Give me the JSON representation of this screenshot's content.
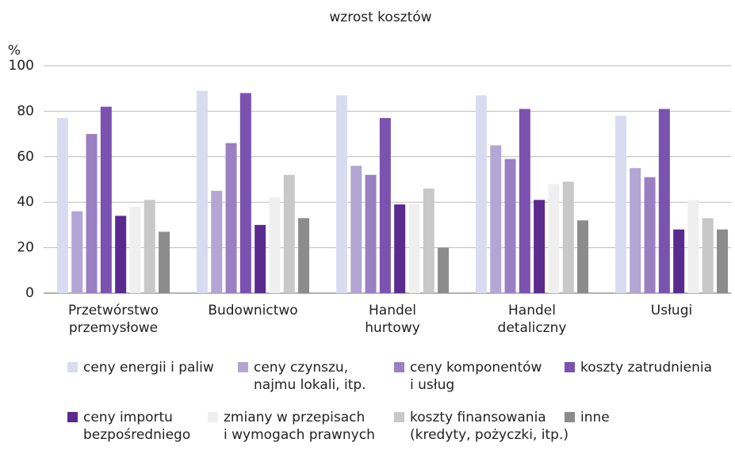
{
  "chart_data": {
    "type": "bar",
    "title": "wzrost kosztów",
    "y_label": "%",
    "categories": [
      "Przetwórstwo\nprzemysłowe",
      "Budownictwo",
      "Handel\nhurtowy",
      "Handel\ndetaliczny",
      "Usługi"
    ],
    "series": [
      {
        "name": "ceny energii i paliw",
        "color": "#d9dcf0",
        "values": [
          77,
          89,
          87,
          87,
          78
        ]
      },
      {
        "name": "ceny czynszu,\nnajmu lokali, itp.",
        "color": "#b3a6d4",
        "values": [
          36,
          45,
          56,
          65,
          55
        ]
      },
      {
        "name": "ceny komponentów\ni usług",
        "color": "#9a7fc3",
        "values": [
          70,
          66,
          52,
          59,
          51
        ]
      },
      {
        "name": "koszty zatrudnienia",
        "color": "#7b52b0",
        "values": [
          82,
          88,
          77,
          81,
          81
        ]
      },
      {
        "name": "ceny importu\nbezpośredniego",
        "color": "#5b2a8f",
        "values": [
          34,
          30,
          39,
          41,
          28
        ]
      },
      {
        "name": "zmiany w przepisach\ni wymogach prawnych",
        "color": "#efefef",
        "values": [
          38,
          42,
          39,
          48,
          41
        ]
      },
      {
        "name": "koszty finansowania\n(kredyty, pożyczki, itp.)",
        "color": "#c8c8c8",
        "values": [
          41,
          52,
          46,
          49,
          33
        ]
      },
      {
        "name": "inne",
        "color": "#8c8c8c",
        "values": [
          27,
          33,
          20,
          32,
          28
        ]
      }
    ],
    "ylim": [
      0,
      100
    ],
    "yticks": [
      0,
      20,
      40,
      60,
      80,
      100
    ],
    "grid": true
  }
}
